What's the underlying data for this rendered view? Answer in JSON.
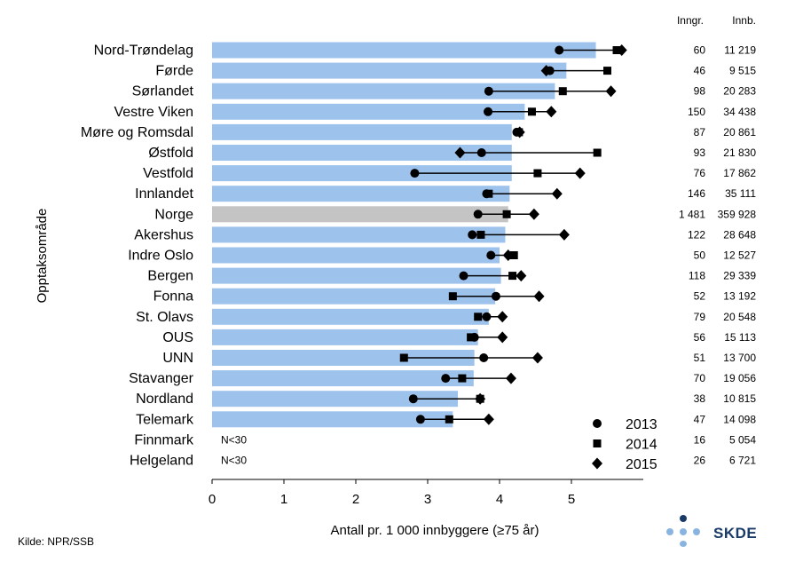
{
  "chart_data": {
    "type": "bar",
    "xlabel": "Antall pr. 1 000 innbyggere (≥75 år)",
    "ylabel": "Opptaksområde",
    "xlim": [
      0,
      6
    ],
    "xticks": [
      0,
      1,
      2,
      3,
      4,
      5
    ],
    "column_headers": [
      "Inngr.",
      "Innb."
    ],
    "small_n_label": "N<30",
    "legend": [
      {
        "name": "2013",
        "marker": "circle"
      },
      {
        "name": "2014",
        "marker": "square"
      },
      {
        "name": "2015",
        "marker": "diamond"
      }
    ],
    "colors": {
      "bar": "#9dc2eb",
      "bar_highlight": "#c4c4c4",
      "marker": "#000000"
    },
    "rows": [
      {
        "label": "Nord-Trøndelag",
        "value": 5.34,
        "y2013": 4.83,
        "y2014": 5.63,
        "y2015": 5.7,
        "inngr": "60",
        "innb": "11 219"
      },
      {
        "label": "Førde",
        "value": 4.93,
        "y2013": 4.7,
        "y2014": 5.5,
        "y2015": 4.65,
        "inngr": "46",
        "innb": "9 515"
      },
      {
        "label": "Sørlandet",
        "value": 4.77,
        "y2013": 3.85,
        "y2014": 4.88,
        "y2015": 5.55,
        "inngr": "98",
        "innb": "20 283"
      },
      {
        "label": "Vestre Viken",
        "value": 4.35,
        "y2013": 3.84,
        "y2014": 4.45,
        "y2015": 4.72,
        "inngr": "150",
        "innb": "34 438"
      },
      {
        "label": "Møre og Romsdal",
        "value": 4.17,
        "y2013": 4.24,
        "y2014": 4.27,
        "y2015": 4.28,
        "inngr": "87",
        "innb": "20 861"
      },
      {
        "label": "Østfold",
        "value": 4.17,
        "y2013": 3.75,
        "y2014": 5.36,
        "y2015": 3.45,
        "inngr": "93",
        "innb": "21 830"
      },
      {
        "label": "Vestfold",
        "value": 4.17,
        "y2013": 2.82,
        "y2014": 4.53,
        "y2015": 5.12,
        "inngr": "76",
        "innb": "17 862"
      },
      {
        "label": "Innlandet",
        "value": 4.14,
        "y2013": 3.82,
        "y2014": 3.85,
        "y2015": 4.8,
        "inngr": "146",
        "innb": "35 111"
      },
      {
        "label": "Norge",
        "value": 4.12,
        "y2013": 3.7,
        "y2014": 4.1,
        "y2015": 4.48,
        "inngr": "1 481",
        "innb": "359 928",
        "highlight": true
      },
      {
        "label": "Akershus",
        "value": 4.08,
        "y2013": 3.62,
        "y2014": 3.74,
        "y2015": 4.9,
        "inngr": "122",
        "innb": "28 648"
      },
      {
        "label": "Indre Oslo",
        "value": 4.0,
        "y2013": 3.88,
        "y2014": 4.2,
        "y2015": 4.12,
        "inngr": "50",
        "innb": "12 527"
      },
      {
        "label": "Bergen",
        "value": 4.02,
        "y2013": 3.5,
        "y2014": 4.18,
        "y2015": 4.3,
        "inngr": "118",
        "innb": "29 339"
      },
      {
        "label": "Fonna",
        "value": 3.94,
        "y2013": 3.95,
        "y2014": 3.35,
        "y2015": 4.55,
        "inngr": "52",
        "innb": "13 192"
      },
      {
        "label": "St. Olavs",
        "value": 3.85,
        "y2013": 3.82,
        "y2014": 3.7,
        "y2015": 4.04,
        "inngr": "79",
        "innb": "20 548"
      },
      {
        "label": "OUS",
        "value": 3.7,
        "y2013": 3.65,
        "y2014": 3.6,
        "y2015": 4.04,
        "inngr": "56",
        "innb": "15 113"
      },
      {
        "label": "UNN",
        "value": 3.65,
        "y2013": 3.78,
        "y2014": 2.67,
        "y2015": 4.53,
        "inngr": "51",
        "innb": "13 700"
      },
      {
        "label": "Stavanger",
        "value": 3.64,
        "y2013": 3.25,
        "y2014": 3.48,
        "y2015": 4.16,
        "inngr": "70",
        "innb": "19 056"
      },
      {
        "label": "Nordland",
        "value": 3.42,
        "y2013": 2.8,
        "y2014": 3.73,
        "y2015": 3.73,
        "inngr": "38",
        "innb": "10 815"
      },
      {
        "label": "Telemark",
        "value": 3.35,
        "y2013": 2.9,
        "y2014": 3.3,
        "y2015": 3.85,
        "inngr": "47",
        "innb": "14 098"
      },
      {
        "label": "Finnmark",
        "value": null,
        "inngr": "16",
        "innb": "5 054"
      },
      {
        "label": "Helgeland",
        "value": null,
        "inngr": "26",
        "innb": "6 721"
      }
    ]
  },
  "footer": {
    "source": "Kilde: NPR/SSB"
  },
  "logo": {
    "text": "SKDE",
    "colors": {
      "primary": "#1a3a68",
      "secondary": "#8ab4e0"
    }
  }
}
